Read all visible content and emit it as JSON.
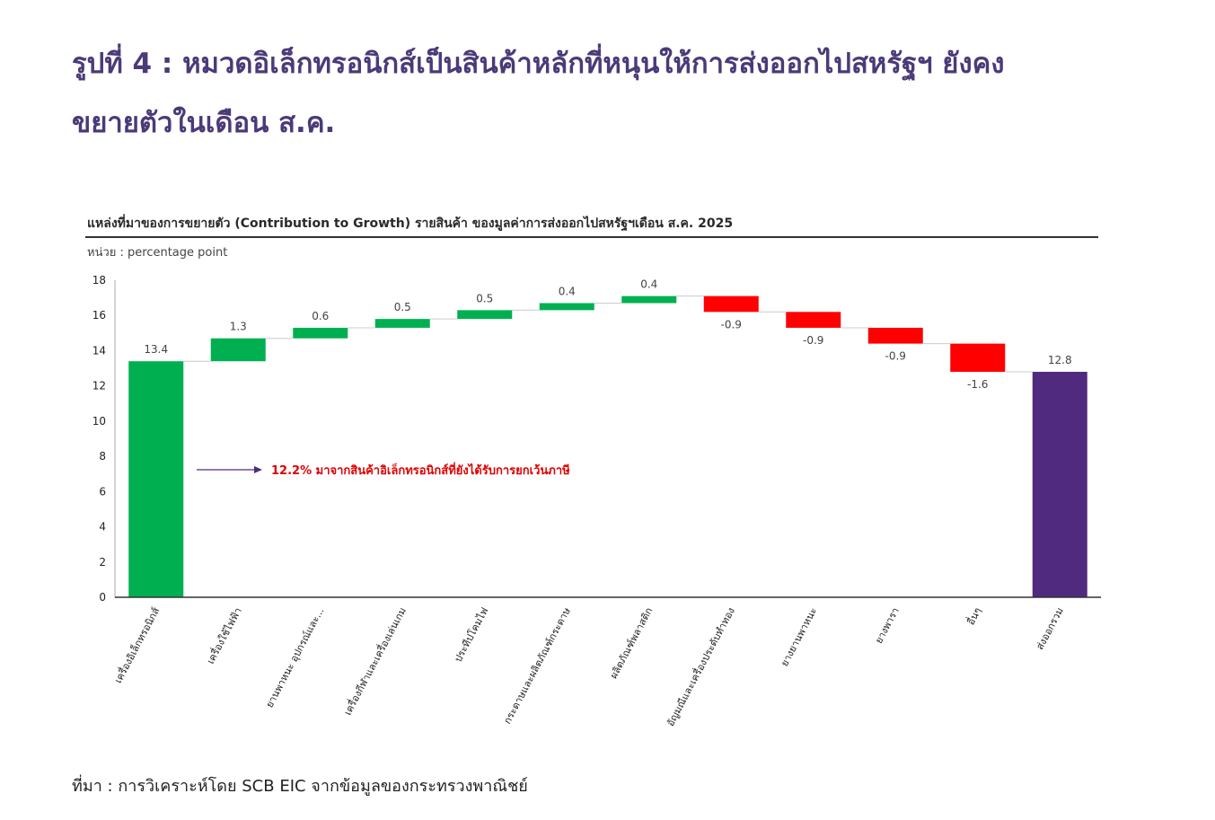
{
  "figure": {
    "title_line1": "รูปที่ 4 : หมวดอิเล็กทรอนิกส์เป็นสินค้าหลักที่หนุนให้การส่งออกไปสหรัฐฯ ยังคง",
    "title_line2": "ขยายตัวในเดือน ส.ค.",
    "source": "ที่มา : การวิเคราะห์โดย SCB EIC จากข้อมูลของกระทรวงพาณิชย์"
  },
  "chart_data": {
    "type": "bar",
    "subtype": "waterfall",
    "title": "แหล่งที่มาของการขยายตัว (Contribution to Growth) รายสินค้า ของมูลค่าการส่งออกไปสหรัฐฯเดือน ส.ค. 2025",
    "unit": "หน่วย : percentage point",
    "categories": [
      "เครื่องอิเล็กทรอนิกส์",
      "เครื่องใช้ไฟฟ้า",
      "ยานพาหนะ อุปกรณ์และ...",
      "เครื่องกีฬาและเครื่องเล่นเกม",
      "ประทีปโคมไฟ",
      "กระดาษและผลิตภัณฑ์กระดาษ",
      "ผลิตภัณฑ์พลาสติก",
      "อัญมณีและเครื่องประดับทำทอง",
      "ยางยานพาหนะ",
      "ยางพารา",
      "อื่นๆ",
      "ส่งออกรวม"
    ],
    "values": [
      13.4,
      1.3,
      0.6,
      0.5,
      0.5,
      0.4,
      0.4,
      -0.9,
      -0.9,
      -0.9,
      -1.6,
      12.8
    ],
    "data_labels": [
      "13.4",
      "1.3",
      "0.6",
      "0.5",
      "0.5",
      "0.4",
      "0.4",
      "-0.9",
      "-0.9",
      "-0.9",
      "-1.6",
      "12.8"
    ],
    "total_indices": [
      0,
      11
    ],
    "ylim": [
      0,
      18
    ],
    "yticks": [
      "0",
      "2",
      "4",
      "6",
      "8",
      "10",
      "12",
      "14",
      "16",
      "18"
    ],
    "colors": {
      "start": "#00b050",
      "increase": "#00b050",
      "decrease": "#ff0000",
      "total": "#4f2a7e"
    },
    "annotation": "12.2% มาจากสินค้าอิเล็กทรอนิกส์ที่ยังได้รับการยกเว้นภาษี",
    "annotation_color": "#e00000",
    "grid": false
  }
}
